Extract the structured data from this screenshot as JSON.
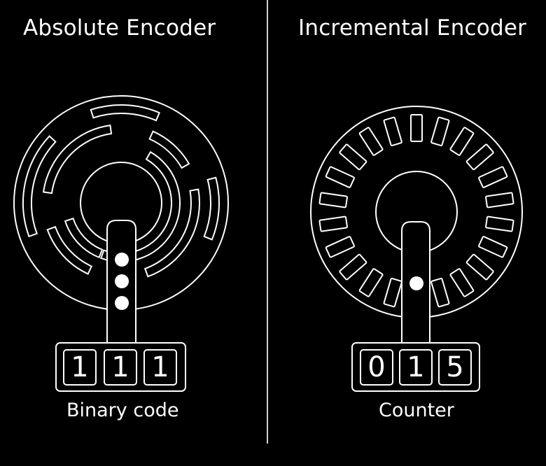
{
  "absolute": {
    "title": "Absolute Encoder",
    "caption": "Binary code",
    "digits": [
      "1",
      "1",
      "1"
    ]
  },
  "incremental": {
    "title": "Incremental Encoder",
    "caption": "Counter",
    "digits": [
      "0",
      "1",
      "5"
    ]
  },
  "colors": {
    "background": "#000000",
    "foreground": "#ffffff",
    "divider": "#cfcfcf"
  }
}
